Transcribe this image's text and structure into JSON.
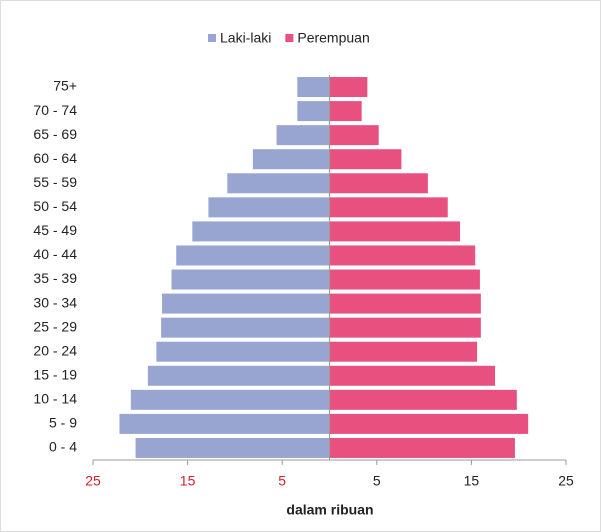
{
  "chart_data": {
    "type": "pyramid",
    "categories": [
      "0 - 4",
      "5 - 9",
      "10 - 14",
      "15 - 19",
      "20 - 24",
      "25 - 29",
      "30 - 34",
      "35 - 39",
      "40 - 44",
      "45 - 49",
      "50 - 54",
      "55 - 59",
      "60 - 64",
      "65 - 69",
      "70 - 74",
      "75+"
    ],
    "series": [
      {
        "name": "Laki-laki",
        "color": "#97a5d0",
        "values": [
          -20.5,
          -22.2,
          -21.0,
          -19.2,
          -18.3,
          -17.8,
          -17.7,
          -16.7,
          -16.2,
          -14.5,
          -12.8,
          -10.8,
          -8.1,
          -5.6,
          -3.4,
          -3.4
        ]
      },
      {
        "name": "Perempuan",
        "color": "#e8507f",
        "values": [
          19.6,
          21.0,
          19.8,
          17.5,
          15.6,
          16.0,
          16.0,
          15.9,
          15.4,
          13.8,
          12.5,
          10.4,
          7.6,
          5.2,
          3.4,
          4.0
        ]
      }
    ],
    "xlabel": "dalam ribuan",
    "xlim": [
      -25,
      25
    ],
    "xticks": [
      {
        "value": -25,
        "label": "25"
      },
      {
        "value": -15,
        "label": "15"
      },
      {
        "value": -5,
        "label": "5"
      },
      5,
      15,
      25
    ],
    "negative_tick_label_color": "#d0202e",
    "legend": "top"
  }
}
